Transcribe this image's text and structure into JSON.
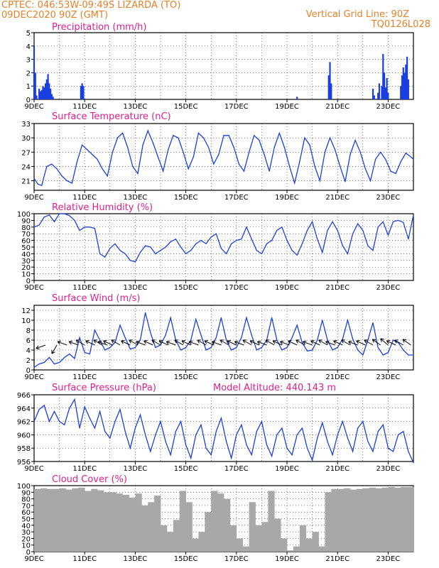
{
  "header": {
    "left_line1": "CPTEC:  046:53W-09:49S  LIZARDA (TO)",
    "left_line2": "09DEC2020 90Z (GMT)",
    "right_line1": "Vertical Grid Line: 90Z",
    "right_line2": "TQ0126L028"
  },
  "model_altitude": "Model Altitude: 440.143 m",
  "x_labels": [
    "9DEC",
    "11DEC",
    "13DEC",
    "15DEC",
    "17DEC",
    "19DEC",
    "21DEC",
    "23DEC"
  ],
  "colors": {
    "header": "#e8802a",
    "title": "#e0208a",
    "series": "#1a3fe0",
    "cloud": "#a8a8a8"
  },
  "chart_data": [
    {
      "type": "bar",
      "title": "Precipitation (mm/h)",
      "ylim": [
        0,
        5
      ],
      "yticks": [
        0,
        1,
        2,
        3,
        4,
        5
      ],
      "x_range_days": [
        9,
        24
      ],
      "x": [
        9.0,
        9.05,
        9.1,
        9.2,
        9.25,
        9.3,
        9.35,
        9.4,
        9.45,
        9.5,
        9.55,
        9.6,
        9.65,
        9.7,
        9.75,
        10.85,
        10.9,
        10.95,
        19.4,
        20.65,
        20.7,
        20.75,
        22.4,
        22.45,
        22.6,
        22.65,
        22.75,
        22.8,
        22.85,
        22.9,
        22.95,
        23.0,
        23.5,
        23.55,
        23.6,
        23.65,
        23.7,
        23.75,
        23.8
      ],
      "values": [
        4.0,
        2.0,
        0.3,
        0.8,
        0.6,
        0.7,
        1.0,
        0.9,
        1.2,
        1.5,
        1.9,
        1.2,
        0.8,
        0.4,
        0.2,
        1.0,
        1.2,
        1.0,
        0.2,
        1.8,
        2.8,
        1.2,
        0.8,
        0.3,
        0.5,
        1.2,
        1.0,
        3.4,
        2.0,
        0.9,
        1.6,
        0.5,
        1.0,
        1.8,
        2.4,
        2.0,
        2.6,
        3.2,
        1.5
      ]
    },
    {
      "type": "line",
      "title": "Surface Temperature (nC)",
      "ylim": [
        19,
        33
      ],
      "yticks": [
        21,
        24,
        27,
        30,
        33
      ],
      "x_range_days": [
        9,
        24
      ],
      "x": [
        9.0,
        9.15,
        9.3,
        9.5,
        9.7,
        9.9,
        10.1,
        10.3,
        10.5,
        10.7,
        10.9,
        11.1,
        11.3,
        11.5,
        11.7,
        11.9,
        12.1,
        12.3,
        12.5,
        12.7,
        12.9,
        13.1,
        13.3,
        13.5,
        13.7,
        13.9,
        14.1,
        14.3,
        14.5,
        14.7,
        14.9,
        15.1,
        15.3,
        15.5,
        15.7,
        15.9,
        16.1,
        16.3,
        16.5,
        16.7,
        16.9,
        17.1,
        17.3,
        17.5,
        17.7,
        17.9,
        18.1,
        18.3,
        18.5,
        18.7,
        18.9,
        19.1,
        19.3,
        19.5,
        19.7,
        19.9,
        20.1,
        20.3,
        20.5,
        20.7,
        20.9,
        21.1,
        21.3,
        21.5,
        21.7,
        21.9,
        22.1,
        22.3,
        22.5,
        22.7,
        22.9,
        23.1,
        23.3,
        23.5,
        23.7,
        23.9,
        24.0
      ],
      "values": [
        21.5,
        20.3,
        20.0,
        24.0,
        24.5,
        23.5,
        22.0,
        21.0,
        20.5,
        25.0,
        28.5,
        27.5,
        26.5,
        25.5,
        23.5,
        22.0,
        27.0,
        30.0,
        31.0,
        28.0,
        24.0,
        22.5,
        28.5,
        31.5,
        29.0,
        26.0,
        23.0,
        27.5,
        30.5,
        30.0,
        27.0,
        23.5,
        26.0,
        31.0,
        30.0,
        28.0,
        24.5,
        26.5,
        30.5,
        30.5,
        28.0,
        24.5,
        23.0,
        27.0,
        30.5,
        29.5,
        26.5,
        23.0,
        28.0,
        31.0,
        28.0,
        24.0,
        20.5,
        25.0,
        30.0,
        28.5,
        24.0,
        21.0,
        27.0,
        30.0,
        27.5,
        24.0,
        20.8,
        26.5,
        29.5,
        27.0,
        23.5,
        21.0,
        25.5,
        27.0,
        25.5,
        23.0,
        22.5,
        25.0,
        26.8,
        26.0,
        25.5
      ]
    },
    {
      "type": "line",
      "title": "Relative Humidity (%)",
      "ylim": [
        0,
        100
      ],
      "yticks": [
        0,
        10,
        20,
        30,
        40,
        50,
        60,
        70,
        80,
        90,
        100
      ],
      "x_range_days": [
        9,
        24
      ],
      "x": [
        9.0,
        9.2,
        9.4,
        9.6,
        9.8,
        10.0,
        10.2,
        10.4,
        10.6,
        10.8,
        11.0,
        11.2,
        11.4,
        11.6,
        11.8,
        12.0,
        12.2,
        12.4,
        12.6,
        12.8,
        13.0,
        13.2,
        13.4,
        13.6,
        13.8,
        14.0,
        14.2,
        14.4,
        14.6,
        14.8,
        15.0,
        15.2,
        15.4,
        15.6,
        15.8,
        16.0,
        16.2,
        16.4,
        16.6,
        16.8,
        17.0,
        17.2,
        17.4,
        17.6,
        17.8,
        18.0,
        18.2,
        18.4,
        18.6,
        18.8,
        19.0,
        19.2,
        19.4,
        19.6,
        19.8,
        20.0,
        20.2,
        20.4,
        20.6,
        20.8,
        21.0,
        21.2,
        21.4,
        21.6,
        21.8,
        22.0,
        22.2,
        22.4,
        22.6,
        22.8,
        23.0,
        23.2,
        23.4,
        23.6,
        23.8,
        24.0
      ],
      "values": [
        80,
        83,
        95,
        98,
        88,
        100,
        100,
        97,
        90,
        75,
        80,
        80,
        78,
        40,
        35,
        48,
        55,
        45,
        40,
        30,
        28,
        42,
        52,
        50,
        40,
        45,
        50,
        58,
        62,
        50,
        40,
        45,
        55,
        60,
        55,
        65,
        70,
        48,
        40,
        55,
        60,
        62,
        80,
        62,
        45,
        40,
        55,
        60,
        75,
        80,
        60,
        45,
        38,
        55,
        75,
        88,
        62,
        42,
        75,
        88,
        75,
        52,
        40,
        70,
        85,
        75,
        52,
        45,
        80,
        88,
        68,
        88,
        90,
        87,
        62,
        98
      ]
    },
    {
      "type": "line",
      "title": "Surface Wind (m/s)",
      "ylim": [
        0,
        13
      ],
      "yticks": [
        0,
        2,
        4,
        6,
        8,
        10,
        12
      ],
      "x_range_days": [
        9,
        24
      ],
      "x": [
        9.0,
        9.2,
        9.4,
        9.6,
        9.8,
        10.0,
        10.2,
        10.4,
        10.6,
        10.8,
        11.0,
        11.2,
        11.4,
        11.6,
        11.8,
        12.0,
        12.2,
        12.4,
        12.6,
        12.8,
        13.0,
        13.2,
        13.4,
        13.6,
        13.8,
        14.0,
        14.2,
        14.4,
        14.6,
        14.8,
        15.0,
        15.2,
        15.4,
        15.6,
        15.8,
        16.0,
        16.2,
        16.4,
        16.6,
        16.8,
        17.0,
        17.2,
        17.4,
        17.6,
        17.8,
        18.0,
        18.2,
        18.4,
        18.6,
        18.8,
        19.0,
        19.2,
        19.4,
        19.6,
        19.8,
        20.0,
        20.2,
        20.4,
        20.6,
        20.8,
        21.0,
        21.2,
        21.4,
        21.6,
        21.8,
        22.0,
        22.2,
        22.4,
        22.6,
        22.8,
        23.0,
        23.2,
        23.4,
        23.6,
        23.8,
        24.0
      ],
      "values": [
        0.5,
        1.2,
        1.5,
        2.5,
        1.2,
        1.5,
        2.5,
        3.2,
        2.3,
        6.5,
        3.5,
        3.2,
        8.0,
        6.0,
        4.0,
        4.5,
        5.5,
        9.0,
        6.5,
        4.2,
        4.5,
        6.0,
        11.5,
        7.5,
        4.5,
        5.0,
        7.0,
        10.5,
        6.0,
        4.0,
        4.5,
        6.0,
        10.2,
        7.0,
        4.0,
        4.5,
        6.5,
        10.5,
        6.0,
        4.0,
        4.5,
        6.5,
        10.5,
        7.0,
        4.0,
        4.5,
        6.0,
        10.5,
        6.0,
        4.0,
        4.5,
        6.5,
        9.0,
        5.5,
        3.8,
        4.0,
        6.0,
        10.0,
        6.0,
        4.0,
        4.5,
        6.2,
        10.0,
        6.2,
        4.0,
        3.0,
        6.0,
        9.5,
        4.5,
        3.0,
        3.5,
        6.0,
        5.5,
        4.0,
        3.0,
        3.0
      ],
      "arrow_x": [
        9.45,
        9.9,
        10.3,
        10.75,
        11.0,
        11.4,
        11.7,
        11.9,
        12.1,
        12.4,
        12.8,
        13.1,
        13.4,
        13.7,
        14.0,
        14.3,
        14.6,
        14.9,
        15.2,
        15.5,
        15.8,
        16.1,
        16.4,
        16.7,
        17.0,
        17.3,
        17.6,
        17.9,
        18.2,
        18.5,
        18.8,
        19.1,
        19.4,
        19.7,
        20.0,
        20.3,
        20.6,
        20.9,
        21.2,
        21.5,
        21.8,
        22.1,
        22.4,
        22.7,
        23.0,
        23.3,
        23.6,
        23.9
      ],
      "arrow_dir_deg": [
        160,
        120,
        200,
        200,
        210,
        205,
        210,
        200,
        205,
        210,
        205,
        210,
        200,
        205,
        210,
        205,
        200,
        210,
        205,
        200,
        210,
        205,
        200,
        210,
        205,
        200,
        210,
        205,
        200,
        210,
        205,
        200,
        205,
        210,
        200,
        205,
        210,
        200,
        205,
        210,
        200,
        205,
        210,
        215,
        220,
        205,
        210,
        215
      ]
    },
    {
      "type": "line",
      "title": "Surface Pressure (hPa)",
      "ylim": [
        956,
        966
      ],
      "yticks": [
        956,
        958,
        960,
        962,
        964,
        966
      ],
      "x_range_days": [
        9,
        24
      ],
      "x": [
        9.0,
        9.2,
        9.4,
        9.6,
        9.8,
        10.0,
        10.2,
        10.4,
        10.6,
        10.8,
        11.0,
        11.2,
        11.4,
        11.6,
        11.8,
        12.0,
        12.2,
        12.4,
        12.6,
        12.8,
        13.0,
        13.2,
        13.4,
        13.6,
        13.8,
        14.0,
        14.2,
        14.4,
        14.6,
        14.8,
        15.0,
        15.2,
        15.4,
        15.6,
        15.8,
        16.0,
        16.2,
        16.4,
        16.6,
        16.8,
        17.0,
        17.2,
        17.4,
        17.6,
        17.8,
        18.0,
        18.2,
        18.4,
        18.6,
        18.8,
        19.0,
        19.2,
        19.4,
        19.6,
        19.8,
        20.0,
        20.2,
        20.4,
        20.6,
        20.8,
        21.0,
        21.2,
        21.4,
        21.6,
        21.8,
        22.0,
        22.2,
        22.4,
        22.6,
        22.8,
        23.0,
        23.2,
        23.4,
        23.6,
        23.8,
        24.0
      ],
      "values": [
        962.0,
        963.8,
        964.4,
        962.0,
        963.5,
        962.0,
        961.5,
        964.0,
        965.3,
        961.0,
        964.2,
        962.5,
        961.0,
        963.5,
        960.5,
        959.5,
        962.0,
        963.8,
        960.5,
        958.0,
        961.0,
        963.0,
        960.0,
        957.5,
        960.0,
        962.0,
        959.0,
        957.0,
        960.5,
        962.0,
        958.5,
        956.5,
        960.0,
        961.5,
        958.0,
        957.0,
        960.5,
        962.5,
        959.0,
        956.5,
        960.0,
        961.5,
        958.5,
        957.0,
        960.5,
        962.0,
        958.5,
        956.8,
        960.0,
        961.0,
        958.0,
        957.0,
        960.0,
        961.0,
        958.0,
        956.2,
        959.5,
        961.8,
        959.0,
        957.0,
        960.0,
        962.0,
        959.5,
        957.5,
        961.0,
        962.0,
        959.0,
        957.5,
        960.5,
        961.5,
        958.0,
        957.5,
        960.0,
        960.5,
        957.5,
        955.8
      ]
    },
    {
      "type": "bar",
      "title": "Cloud Cover (%)",
      "ylim": [
        0,
        100
      ],
      "yticks": [
        0,
        10,
        20,
        30,
        40,
        50,
        60,
        70,
        80,
        90,
        100
      ],
      "x_range_days": [
        9,
        24
      ],
      "x": [
        9.0,
        9.25,
        9.5,
        9.75,
        10.0,
        10.25,
        10.5,
        10.75,
        11.0,
        11.25,
        11.5,
        11.75,
        12.0,
        12.25,
        12.5,
        12.75,
        13.0,
        13.25,
        13.5,
        13.75,
        14.0,
        14.25,
        14.5,
        14.75,
        15.0,
        15.25,
        15.5,
        15.75,
        16.0,
        16.25,
        16.5,
        16.75,
        17.0,
        17.25,
        17.5,
        17.75,
        18.0,
        18.25,
        18.5,
        18.75,
        19.0,
        19.25,
        19.5,
        19.75,
        20.0,
        20.25,
        20.5,
        20.75,
        21.0,
        21.25,
        21.5,
        21.75,
        22.0,
        22.25,
        22.5,
        22.75,
        23.0,
        23.25,
        23.5,
        23.75
      ],
      "values": [
        95,
        96,
        95,
        95,
        96,
        94,
        96,
        97,
        92,
        95,
        93,
        90,
        90,
        88,
        86,
        82,
        88,
        70,
        75,
        85,
        40,
        30,
        48,
        92,
        75,
        20,
        30,
        60,
        92,
        88,
        80,
        40,
        20,
        8,
        75,
        40,
        45,
        92,
        50,
        20,
        2,
        8,
        40,
        20,
        30,
        8,
        90,
        95,
        95,
        96,
        94,
        95,
        96,
        97,
        96,
        97,
        98,
        97,
        98,
        98
      ]
    }
  ]
}
